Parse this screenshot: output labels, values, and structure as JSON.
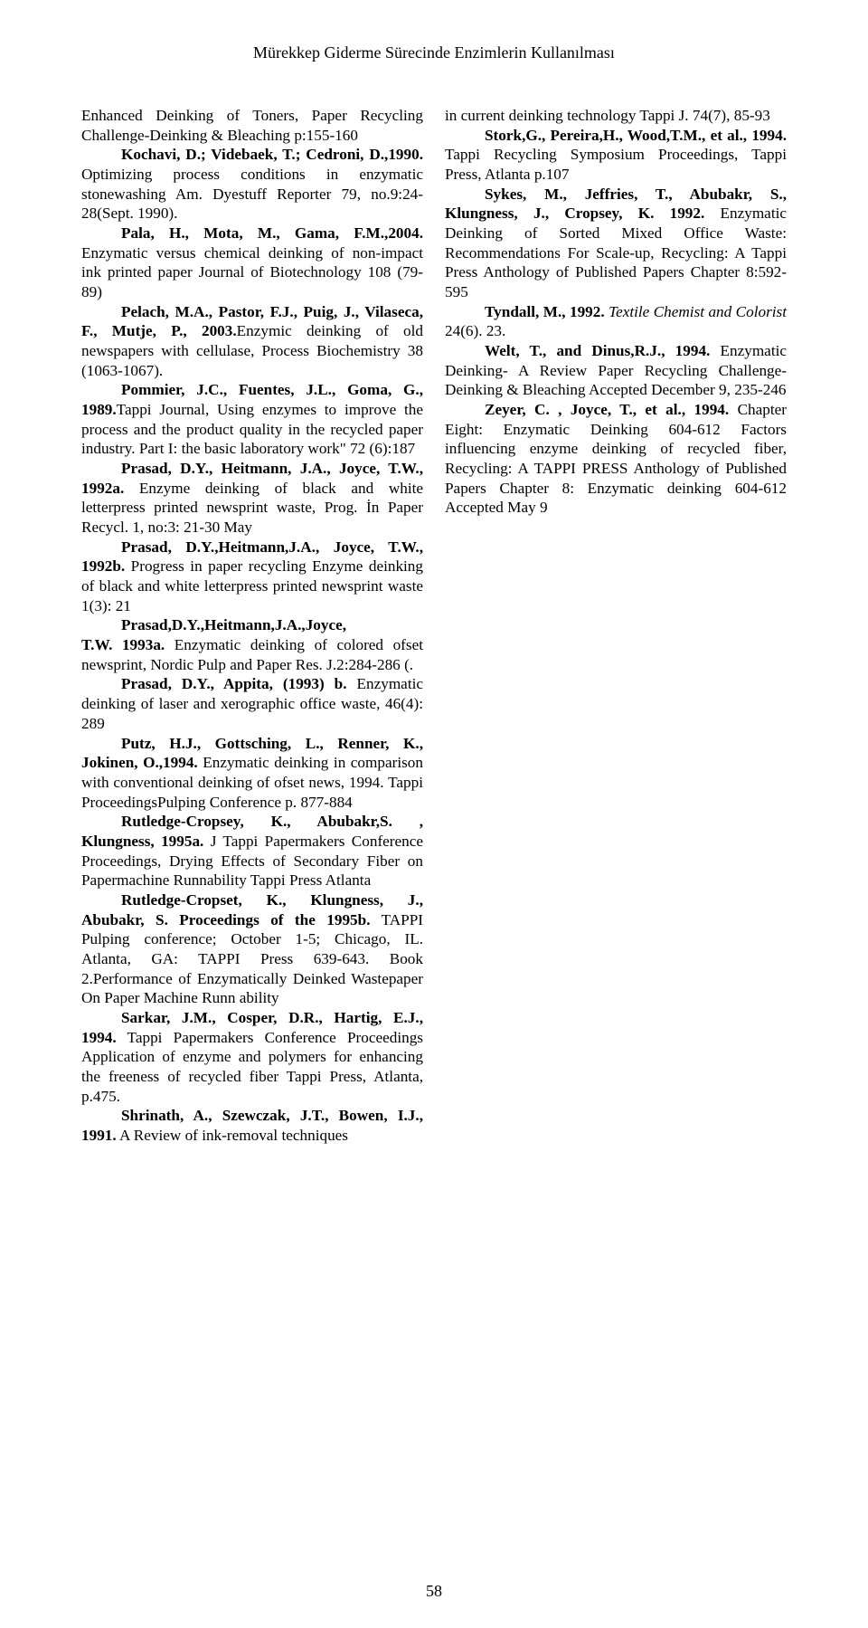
{
  "running_head": "Mürekkep Giderme Sürecinde Enzimlerin Kullanılması",
  "page_number": "58",
  "left": {
    "p1_a": "Enhanced Deinking of Toners, Paper Recycling Challenge-Deinking & Bleaching p:155-160",
    "p1_b": "Kochavi, D.; Videbaek, T.; Cedroni, D.,1990.",
    "p1_c": " Optimizing process conditions in enzymatic stonewashing Am. Dyestuff Reporter 79, no.9:24-28(Sept. 1990).",
    "p2_a": "Pala, H., Mota, M., Gama, F.M.,2004.",
    "p2_b": " Enzymatic versus chemical deinking of non-impact ink printed paper Journal of Biotechnology 108 (79-89)",
    "p3_a": "Pelach, M.A., Pastor, F.J., Puig, J., Vilaseca, F., Mutje, P., 2003.",
    "p3_b": "Enzymic deinking of old newspapers with cellulase, Process Biochemistry 38 (1063-1067).",
    "p4_a": "Pommier, J.C., Fuentes, J.L., Goma, G., 1989.",
    "p4_b": "Tappi Journal, Using enzymes to improve the process and the product quality in the recycled paper industry. Part I: the basic laboratory work\" 72 (6):187",
    "p5_a": "Prasad, D.Y., Heitmann, J.A., Joyce, T.W., 1992a.",
    "p5_b": " Enzyme deinking of black and white letterpress printed newsprint waste, Prog. İn Paper Recycl. 1, no:3: 21-30 May",
    "p6_a": "Prasad, D.Y.,Heitmann,J.A., Joyce, T.W., 1992b.",
    "p6_b": " Progress in paper recycling Enzyme deinking of black and white letterpress printed newsprint waste 1(3): 21",
    "p7_a": "Prasad,D.Y.,Heitmann,J.A.,Joyce,",
    "p7_b": "T.W. 1993a.",
    "p7_c": " Enzymatic deinking of colored ofset newsprint, Nordic Pulp and Paper Res. J.2:284-286 (.",
    "p8_a": "Prasad, D.Y., Appita, (1993) b.",
    "p8_b": " Enzymatic deinking of laser and xerographic office waste, 46(4): 289",
    "p9_a": "Putz, H.J., Gottsching, L., Renner, K., Jokinen, O.,1994.",
    "p9_b": " Enzymatic deinking in comparison with conventional deinking of ofset news, 1994. Tappi ProceedingsPulping Conference p. 877-884",
    "p10_a": "Rutledge-Cropsey, K., Abubakr,S. , Klungness, 1995a.",
    "p10_b": " J Tappi Papermakers Conference Proceedings, Drying Effects of Secondary Fiber on Papermachine Runnability Tappi Press Atlanta",
    "p11_a": "Rutledge-Cropset, K., Klungness, J., Abubakr, S. Proceedings of the 1995b.",
    "p11_b": " TAPPI Pulping conference; October 1-5; Chicago, IL. Atlanta, GA: TAPPI Press 639-643. Book 2.Performance of Enzymatically Deinked Wastepaper On Paper Machine Runn ability",
    "p12_a": "Sarkar, J.M., Cosper, D.R., Hartig, E.J., 1994.",
    "p12_b": " Tappi Papermakers Conference Proceedings Application of enzyme and polymers for enhancing the freeness of recycled fiber Tappi Press, Atlanta, p.475.",
    "p13_a": "Shrinath, A., Szewczak, J.T., Bowen, I.J., 1991.",
    "p13_b": " A Review of ink-removal techniques"
  },
  "right": {
    "p1_a": "in current deinking technology Tappi J. 74(7), 85-93",
    "p2_a": "Stork,G., Pereira,H., Wood,T.M., et al., 1994.",
    "p2_b": " Tappi Recycling Symposium Proceedings, Tappi Press, Atlanta p.107",
    "p3_a": "Sykes, M., Jeffries, T., Abubakr, S., Klungness, J., Cropsey, K. 1992.",
    "p3_b": " Enzymatic Deinking of Sorted Mixed Office Waste: Recommendations For Scale-up, Recycling: A Tappi Press Anthology of Published Papers Chapter 8:592-595",
    "p4_a": "Tyndall, M., 1992.",
    "p4_b": " Textile Chemist and Colorist",
    "p4_c": " 24(6). 23.",
    "p5_a": "Welt, T., and Dinus,R.J., 1994.",
    "p5_b": " Enzymatic Deinking- A Review Paper Recycling Challenge-Deinking & Bleaching Accepted December 9, 235-246",
    "p6_a": "Zeyer, C. , Joyce, T., et al., 1994.",
    "p6_b": " Chapter Eight: Enzymatic Deinking 604-612 Factors influencing enzyme deinking of recycled fiber, Recycling: A TAPPI PRESS Anthology of Published Papers Chapter 8: Enzymatic deinking 604-612 Accepted May 9"
  }
}
